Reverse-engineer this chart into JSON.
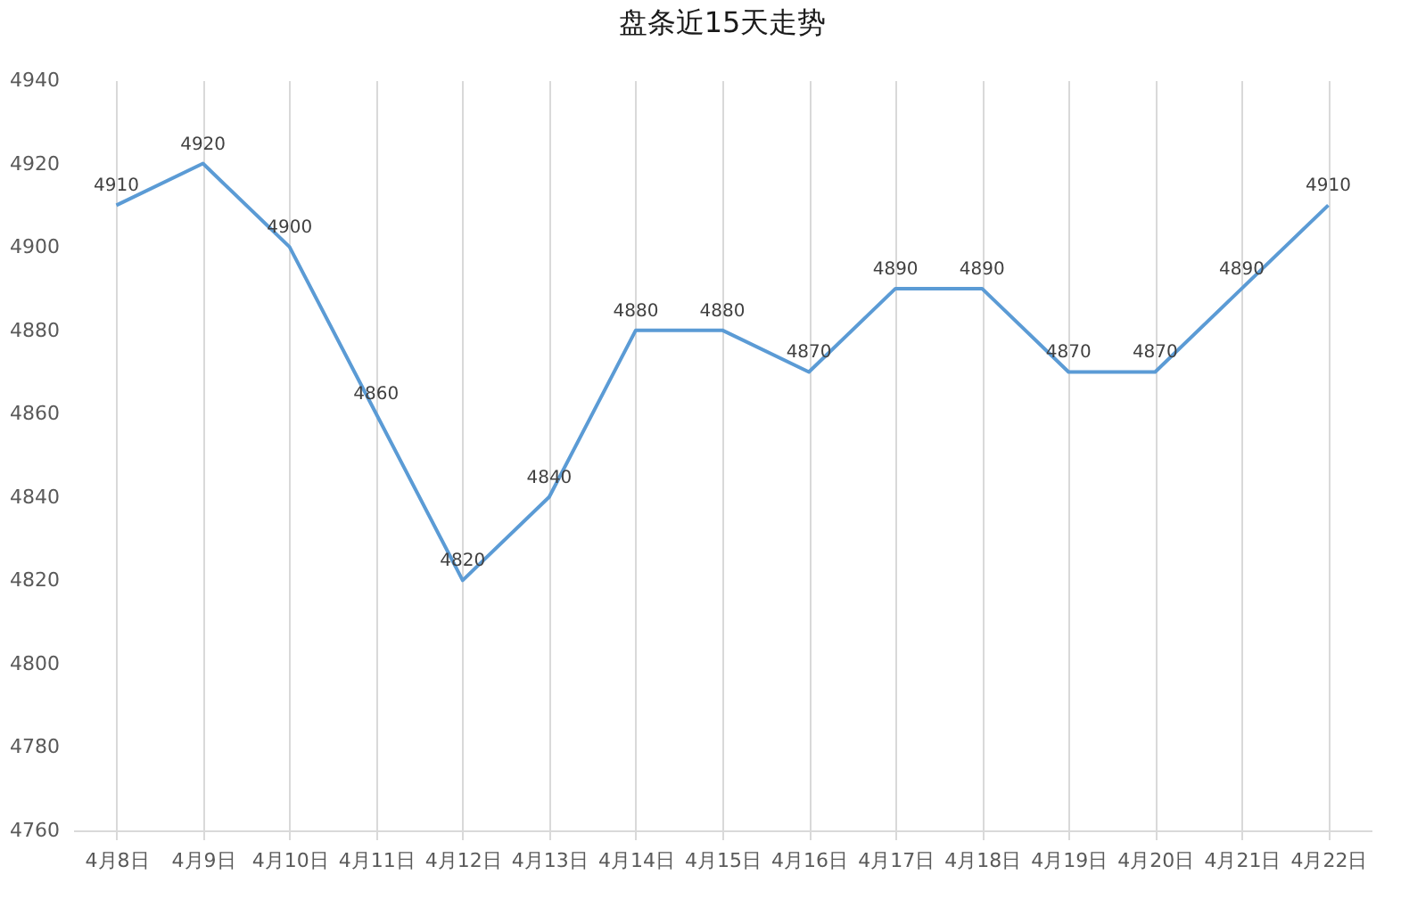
{
  "chart_data": {
    "type": "line",
    "title": "盘条近15天走势",
    "categories": [
      "4月8日",
      "4月9日",
      "4月10日",
      "4月11日",
      "4月12日",
      "4月13日",
      "4月14日",
      "4月15日",
      "4月16日",
      "4月17日",
      "4月18日",
      "4月19日",
      "4月20日",
      "4月21日",
      "4月22日"
    ],
    "series": [
      {
        "color": "#5b9bd5",
        "values": [
          4910,
          4920,
          4900,
          4860,
          4820,
          4840,
          4880,
          4880,
          4870,
          4890,
          4890,
          4870,
          4870,
          4890,
          4910
        ]
      }
    ],
    "ylim": [
      4760,
      4940
    ],
    "yticks": [
      4760,
      4780,
      4800,
      4820,
      4840,
      4860,
      4880,
      4900,
      4920,
      4940
    ],
    "grid": "x",
    "data_labels": true,
    "legend": false,
    "marker": "none",
    "line_style": "solid"
  }
}
